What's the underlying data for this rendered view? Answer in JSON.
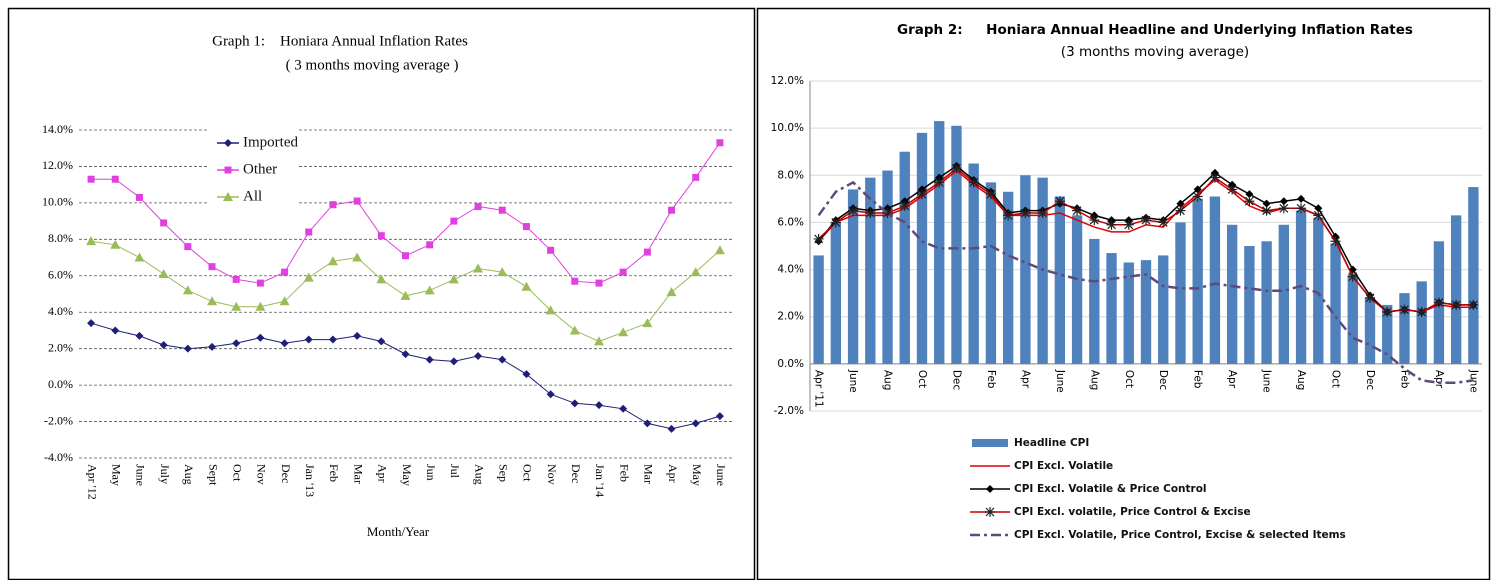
{
  "chart_data": [
    {
      "type": "line",
      "title": "Graph 1:    Honiara Annual Inflation Rates",
      "subtitle": "( 3 months moving average )",
      "x_label": "Month/Year",
      "categories": [
        "Apr '12",
        "May",
        "June",
        "July",
        "Aug",
        "Sept",
        "Oct",
        "Nov",
        "Dec",
        "Jan '13",
        "Feb",
        "Mar",
        "Apr",
        "May",
        "Jun",
        "Jul",
        "Aug",
        "Sep",
        "Oct",
        "Nov",
        "Dec",
        "Jan '14",
        "Feb",
        "Mar",
        "Apr",
        "May",
        "June"
      ],
      "ylim": [
        -4,
        14
      ],
      "yticks": [
        {
          "value": -4,
          "label": "-4.0%"
        },
        {
          "value": -2,
          "label": "-2.0%"
        },
        {
          "value": 0,
          "label": "0.0%"
        },
        {
          "value": 2,
          "label": "2.0%"
        },
        {
          "value": 4,
          "label": "4.0%"
        },
        {
          "value": 6,
          "label": "6.0%"
        },
        {
          "value": 8,
          "label": "8.0%"
        },
        {
          "value": 10,
          "label": "10.0%"
        },
        {
          "value": 12,
          "label": "12.0%"
        },
        {
          "value": 14,
          "label": "14.0%"
        }
      ],
      "grid": true,
      "legend": "top-left",
      "series": [
        {
          "name": "Imported",
          "color": "#1f1f78",
          "marker": "diamond",
          "values": [
            3.4,
            3.0,
            2.7,
            2.2,
            2.0,
            2.1,
            2.3,
            2.6,
            2.3,
            2.5,
            2.5,
            2.7,
            2.4,
            1.7,
            1.4,
            1.3,
            1.6,
            1.4,
            0.6,
            -0.5,
            -1.0,
            -1.1,
            -1.3,
            -2.1,
            -2.4,
            -2.1,
            -1.7
          ]
        },
        {
          "name": "Other",
          "color": "#e040e0",
          "marker": "square",
          "values": [
            11.3,
            11.3,
            10.3,
            8.9,
            7.6,
            6.5,
            5.8,
            5.6,
            6.2,
            8.4,
            9.9,
            10.1,
            8.2,
            7.1,
            7.7,
            9.0,
            9.8,
            9.6,
            8.7,
            7.4,
            5.7,
            5.6,
            6.2,
            7.3,
            9.6,
            11.4,
            13.3
          ]
        },
        {
          "name": "All",
          "color": "#9bbb59",
          "marker": "triangle",
          "values": [
            7.9,
            7.7,
            7.0,
            6.1,
            5.2,
            4.6,
            4.3,
            4.3,
            4.6,
            5.9,
            6.8,
            7.0,
            5.8,
            4.9,
            5.2,
            5.8,
            6.4,
            6.2,
            5.4,
            4.1,
            3.0,
            2.4,
            2.9,
            3.4,
            5.1,
            6.2,
            7.4
          ]
        }
      ]
    },
    {
      "type": "combo",
      "title": "Graph 2:     Honiara Annual Headline and Underlying Inflation Rates",
      "subtitle": "(3 months moving average)",
      "categories": [
        "Apr '11",
        null,
        "June",
        null,
        "Aug",
        null,
        "Oct",
        null,
        "Dec",
        null,
        "Feb",
        null,
        "Apr",
        null,
        "June",
        null,
        "Aug",
        null,
        "Oct",
        null,
        "Dec",
        null,
        "Feb",
        null,
        "Apr",
        null,
        "June",
        null,
        "Aug",
        null,
        "Oct",
        null,
        "Dec",
        null,
        "Feb",
        null,
        "Apr",
        null,
        "June"
      ],
      "ylim": [
        -2,
        12
      ],
      "yticks": [
        {
          "value": -2,
          "label": "-2.0%"
        },
        {
          "value": 0,
          "label": "0.0%"
        },
        {
          "value": 2,
          "label": "2.0%"
        },
        {
          "value": 4,
          "label": "4.0%"
        },
        {
          "value": 6,
          "label": "6.0%"
        },
        {
          "value": 8,
          "label": "8.0%"
        },
        {
          "value": 10,
          "label": "10.0%"
        },
        {
          "value": 12,
          "label": "12.0%"
        }
      ],
      "grid": true,
      "legend": "bottom",
      "series": [
        {
          "name": "Headline CPI",
          "type": "bar",
          "color": "#4f81bd",
          "values": [
            4.6,
            6.0,
            7.4,
            7.9,
            8.2,
            9.0,
            9.8,
            10.3,
            10.1,
            8.5,
            7.7,
            7.3,
            8.0,
            7.9,
            7.1,
            6.3,
            5.3,
            4.7,
            4.3,
            4.4,
            4.6,
            6.0,
            7.0,
            7.1,
            5.9,
            5.0,
            5.2,
            5.9,
            6.5,
            6.2,
            5.1,
            3.8,
            2.8,
            2.5,
            3.0,
            3.5,
            5.2,
            6.3,
            7.5
          ]
        },
        {
          "name": "CPI Excl. Volatile",
          "type": "line",
          "color": "#e00000",
          "values": [
            5.2,
            6.0,
            6.3,
            6.3,
            6.3,
            6.6,
            7.1,
            7.6,
            8.2,
            7.6,
            7.1,
            6.3,
            6.3,
            6.3,
            6.4,
            6.1,
            5.8,
            5.6,
            5.6,
            5.9,
            5.8,
            6.6,
            7.2,
            7.8,
            7.3,
            6.7,
            6.4,
            6.6,
            6.6,
            6.3,
            5.2,
            3.7,
            2.8,
            2.2,
            2.3,
            2.2,
            2.5,
            2.4,
            2.4
          ]
        },
        {
          "name": "CPI Excl. Volatile & Price Control",
          "type": "line",
          "color": "#000000",
          "marker": "diamond",
          "values": [
            5.2,
            6.1,
            6.6,
            6.5,
            6.6,
            6.9,
            7.4,
            7.9,
            8.4,
            7.8,
            7.3,
            6.4,
            6.5,
            6.5,
            6.8,
            6.6,
            6.3,
            6.1,
            6.1,
            6.2,
            6.1,
            6.8,
            7.4,
            8.1,
            7.6,
            7.2,
            6.8,
            6.9,
            7.0,
            6.6,
            5.4,
            4.0,
            2.9,
            2.2,
            2.3,
            2.2,
            2.6,
            2.5,
            2.5
          ]
        },
        {
          "name": "CPI Excl. volatile, Price Control & Excise",
          "type": "line",
          "color": "#c00000",
          "marker": "star",
          "values": [
            5.3,
            6.0,
            6.5,
            6.4,
            6.4,
            6.7,
            7.2,
            7.7,
            8.3,
            7.7,
            7.2,
            6.3,
            6.4,
            6.4,
            6.9,
            6.5,
            6.1,
            5.9,
            5.9,
            6.1,
            6.0,
            6.5,
            7.1,
            7.9,
            7.4,
            6.9,
            6.5,
            6.6,
            6.6,
            6.3,
            5.2,
            3.7,
            2.8,
            2.2,
            2.3,
            2.2,
            2.6,
            2.5,
            2.5
          ]
        },
        {
          "name": "CPI Excl. Volatile, Price Control, Excise & selected Items",
          "type": "line",
          "color": "#604a7b",
          "dash": "dash-dot",
          "values": [
            6.3,
            7.3,
            7.7,
            7.0,
            6.4,
            6.0,
            5.2,
            4.9,
            4.9,
            4.9,
            5.0,
            4.6,
            4.3,
            4.0,
            3.8,
            3.6,
            3.5,
            3.6,
            3.7,
            3.8,
            3.3,
            3.2,
            3.2,
            3.4,
            3.3,
            3.2,
            3.1,
            3.1,
            3.3,
            3.0,
            2.0,
            1.1,
            0.8,
            0.4,
            -0.2,
            -0.7,
            -0.8,
            -0.8,
            -0.7
          ]
        }
      ]
    }
  ]
}
